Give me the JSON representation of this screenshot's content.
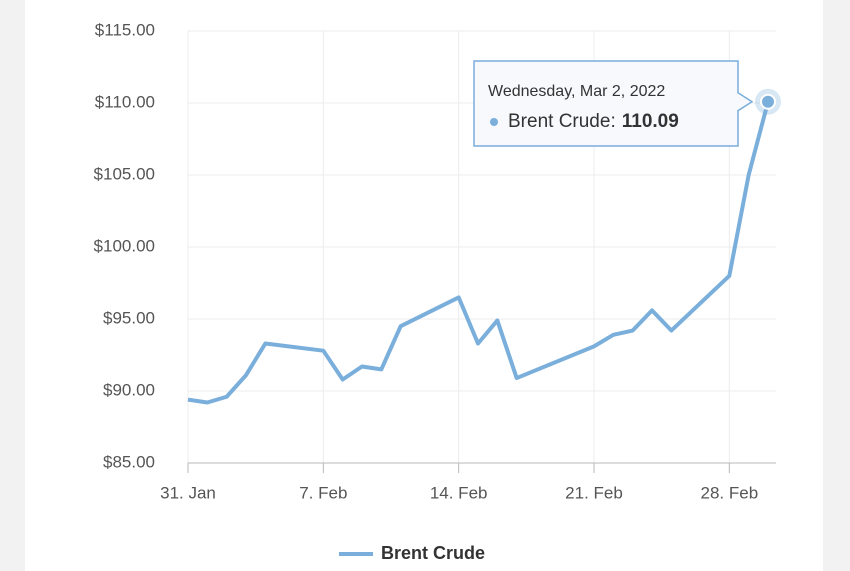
{
  "chart_data": {
    "type": "line",
    "x": [
      "01-31",
      "02-01",
      "02-02",
      "02-03",
      "02-04",
      "02-07",
      "02-08",
      "02-09",
      "02-10",
      "02-11",
      "02-14",
      "02-15",
      "02-16",
      "02-17",
      "02-21",
      "02-22",
      "02-23",
      "02-24",
      "02-25",
      "02-28",
      "03-01",
      "03-02"
    ],
    "series": [
      {
        "name": "Brent Crude",
        "color": "#7aaedb",
        "values": [
          89.4,
          89.2,
          89.6,
          91.1,
          93.3,
          92.8,
          90.8,
          91.7,
          91.5,
          94.5,
          96.5,
          93.3,
          94.9,
          90.9,
          93.1,
          93.9,
          94.2,
          95.6,
          94.2,
          98.0,
          105.0,
          110.09
        ]
      }
    ],
    "xlim": [
      "01-31",
      "03-02"
    ],
    "xticks": [
      {
        "value": "01-31",
        "label": "31. Jan"
      },
      {
        "value": "02-07",
        "label": "7. Feb"
      },
      {
        "value": "02-14",
        "label": "14. Feb"
      },
      {
        "value": "02-21",
        "label": "21. Feb"
      },
      {
        "value": "02-28",
        "label": "28. Feb"
      }
    ],
    "ylim": [
      85,
      115
    ],
    "yticks": [
      {
        "value": 85,
        "label": "$85.00"
      },
      {
        "value": 90,
        "label": "$90.00"
      },
      {
        "value": 95,
        "label": "$95.00"
      },
      {
        "value": 100,
        "label": "$100.00"
      },
      {
        "value": 105,
        "label": "$105.00"
      },
      {
        "value": 110,
        "label": "$110.00"
      },
      {
        "value": 115,
        "label": "$115.00"
      }
    ],
    "grid": true,
    "legend": "bottom",
    "tooltip": {
      "title": "Wednesday, Mar 2, 2022",
      "label": "Brent Crude:"
    }
  }
}
